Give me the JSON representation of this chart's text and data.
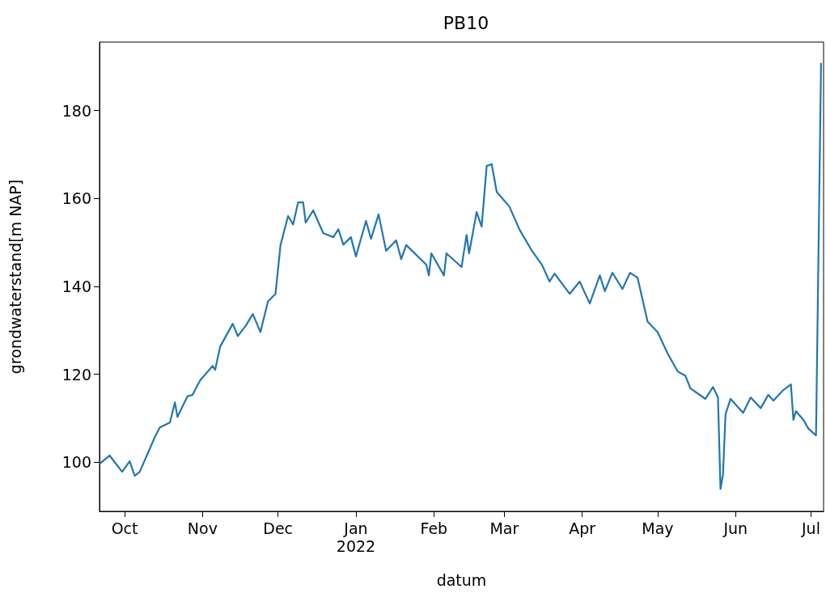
{
  "chart_data": {
    "type": "line",
    "title": "PB10",
    "xlabel": "datum",
    "ylabel": "grondwaterstand[m NAP]",
    "x": [
      "2021-09-21",
      "2021-09-25",
      "2021-09-30",
      "2021-10-03",
      "2021-10-05",
      "2021-10-07",
      "2021-10-13",
      "2021-10-15",
      "2021-10-19",
      "2021-10-21",
      "2021-10-22",
      "2021-10-26",
      "2021-10-28",
      "2021-10-31",
      "2021-11-05",
      "2021-11-06",
      "2021-11-08",
      "2021-11-13",
      "2021-11-15",
      "2021-11-18",
      "2021-11-21",
      "2021-11-24",
      "2021-11-27",
      "2021-11-30",
      "2021-12-02",
      "2021-12-05",
      "2021-12-07",
      "2021-12-09",
      "2021-12-11",
      "2021-12-12",
      "2021-12-15",
      "2021-12-19",
      "2021-12-23",
      "2021-12-25",
      "2021-12-27",
      "2021-12-30",
      "2022-01-01",
      "2022-01-05",
      "2022-01-07",
      "2022-01-10",
      "2022-01-13",
      "2022-01-17",
      "2022-01-19",
      "2022-01-21",
      "2022-01-29",
      "2022-01-30",
      "2022-01-31",
      "2022-02-05",
      "2022-02-06",
      "2022-02-12",
      "2022-02-14",
      "2022-02-15",
      "2022-02-18",
      "2022-02-20",
      "2022-02-22",
      "2022-02-24",
      "2022-02-26",
      "2022-03-03",
      "2022-03-07",
      "2022-03-12",
      "2022-03-16",
      "2022-03-19",
      "2022-03-21",
      "2022-03-27",
      "2022-03-31",
      "2022-04-04",
      "2022-04-08",
      "2022-04-10",
      "2022-04-13",
      "2022-04-17",
      "2022-04-20",
      "2022-04-23",
      "2022-04-27",
      "2022-05-01",
      "2022-05-05",
      "2022-05-09",
      "2022-05-12",
      "2022-05-14",
      "2022-05-20",
      "2022-05-23",
      "2022-05-25",
      "2022-05-26",
      "2022-05-27",
      "2022-05-28",
      "2022-05-30",
      "2022-06-04",
      "2022-06-07",
      "2022-06-11",
      "2022-06-14",
      "2022-06-16",
      "2022-06-20",
      "2022-06-23",
      "2022-06-24",
      "2022-06-25",
      "2022-06-28",
      "2022-06-30",
      "2022-07-03",
      "2022-07-05"
    ],
    "series": [
      {
        "color": "#1f77b4",
        "values": [
          99.6,
          101.5,
          97.8,
          100.2,
          96.9,
          97.8,
          105.7,
          107.9,
          109,
          113.6,
          110.3,
          115,
          115.3,
          118.6,
          121.9,
          121,
          126.3,
          131.5,
          128.7,
          130.9,
          133.7,
          129.6,
          136.6,
          138.3,
          149.4,
          156,
          154.1,
          159.1,
          159.1,
          154.5,
          157.3,
          152.1,
          151.2,
          153,
          149.5,
          151.2,
          146.8,
          154.9,
          150.8,
          156.4,
          148.1,
          150.5,
          146.2,
          149.4,
          144.9,
          142.5,
          147.5,
          142.5,
          147.5,
          144.4,
          151.7,
          147.5,
          156.9,
          153.6,
          167.4,
          167.8,
          161.5,
          158.2,
          153,
          148.1,
          144.9,
          141.1,
          142.9,
          138.3,
          141.1,
          136.1,
          142.5,
          138.9,
          143.1,
          139.4,
          143.1,
          142,
          132,
          129.6,
          124.7,
          120.6,
          119.7,
          116.8,
          114.4,
          117.1,
          114.7,
          93.9,
          97.2,
          110.9,
          114.4,
          111.2,
          114.7,
          112.3,
          115.3,
          114,
          116.4,
          117.7,
          109.6,
          111.6,
          109.6,
          107.6,
          106.1,
          190.7
        ]
      }
    ],
    "xlim": [
      "2021-09-21",
      "2022-07-06"
    ],
    "xticks": [
      {
        "value": "2021-10-01",
        "label": "Oct"
      },
      {
        "value": "2021-11-01",
        "label": "Nov"
      },
      {
        "value": "2021-12-01",
        "label": "Dec"
      },
      {
        "value": "2022-01-01",
        "label": "Jan\n2022"
      },
      {
        "value": "2022-02-01",
        "label": "Feb"
      },
      {
        "value": "2022-03-01",
        "label": "Mar"
      },
      {
        "value": "2022-04-01",
        "label": "Apr"
      },
      {
        "value": "2022-05-01",
        "label": "May"
      },
      {
        "value": "2022-06-01",
        "label": "Jun"
      },
      {
        "value": "2022-07-01",
        "label": "Jul"
      }
    ],
    "ylim": [
      88.8,
      195.6
    ],
    "yticks": [
      100,
      120,
      140,
      160,
      180
    ],
    "grid": false,
    "marker": "none",
    "line_style": "solid"
  }
}
